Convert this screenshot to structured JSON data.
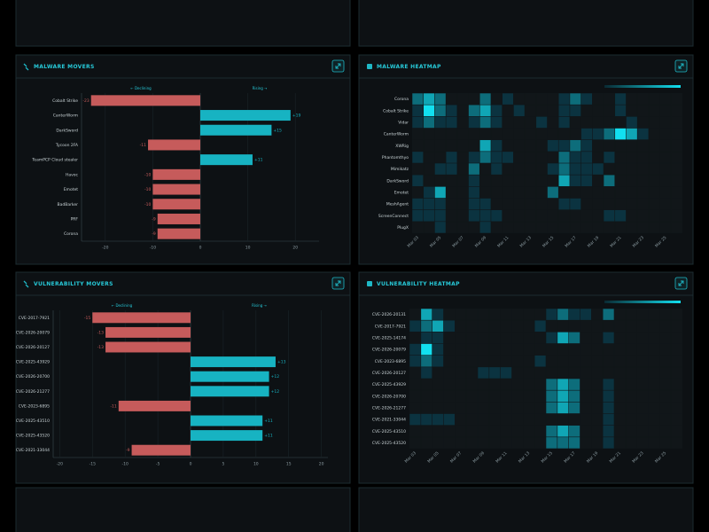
{
  "chart_data": [
    {
      "type": "diverging_bar",
      "title": "MALWARE MOVERS",
      "annotations": [
        "← Declining",
        "Rising →"
      ],
      "categories": [
        "Cobalt Strike",
        "CanterWorm",
        "DarkSword",
        "Tycoon 2FA",
        "TeamPCP Cloud stealer",
        "Havoc",
        "Emotet",
        "BadBarker",
        "PRF",
        "Corona"
      ],
      "values": [
        -23,
        19,
        15,
        -11,
        11,
        -10,
        -10,
        -10,
        -9,
        -9
      ],
      "value_labels": [
        "-23",
        "+19",
        "+15",
        "-11",
        "+11",
        "-10",
        "-10",
        "-10",
        "-9",
        "-9"
      ],
      "color_down": "#c65b5b",
      "color_up": "#17b3c2",
      "xlim": [
        -25,
        25
      ],
      "xticks": [
        -20,
        -10,
        0,
        10,
        20
      ],
      "grid": true
    },
    {
      "type": "heatmap",
      "title": "MALWARE HEATMAP",
      "rows": [
        "Corona",
        "Cobalt Strike",
        "Vidar",
        "CanterWorm",
        "XWRig",
        "Phantomthyo",
        "Mimikatz",
        "DarkSword",
        "Emotet",
        "MeshAgent",
        "ScreenConnect",
        "PlugX"
      ],
      "categories": [
        "Mar 03",
        null,
        "Mar 05",
        null,
        "Mar 07",
        null,
        "Mar 09",
        null,
        "Mar 11",
        null,
        "Mar 13",
        null,
        "Mar 15",
        null,
        "Mar 17",
        null,
        "Mar 19",
        null,
        "Mar 21",
        null,
        "Mar 23",
        null,
        "Mar 25",
        null
      ],
      "values": [
        [
          2,
          3,
          2,
          0,
          0,
          0,
          2,
          0,
          1,
          0,
          0,
          0,
          0,
          1,
          2,
          1,
          0,
          0,
          1,
          0,
          0,
          0,
          0,
          0
        ],
        [
          1,
          4,
          2,
          1,
          0,
          2,
          3,
          1,
          0,
          1,
          0,
          0,
          0,
          1,
          1,
          0,
          0,
          0,
          1,
          0,
          0,
          0,
          0,
          0
        ],
        [
          1,
          2,
          1,
          1,
          0,
          1,
          2,
          1,
          0,
          0,
          0,
          1,
          0,
          1,
          0,
          0,
          0,
          0,
          0,
          1,
          0,
          0,
          0,
          0
        ],
        [
          0,
          0,
          0,
          0,
          0,
          0,
          0,
          0,
          0,
          0,
          0,
          0,
          0,
          0,
          0,
          1,
          1,
          2,
          4,
          3,
          1,
          0,
          0,
          0
        ],
        [
          0,
          0,
          0,
          0,
          0,
          0,
          3,
          1,
          0,
          0,
          0,
          0,
          1,
          1,
          2,
          1,
          0,
          0,
          0,
          0,
          0,
          0,
          0,
          0
        ],
        [
          1,
          0,
          0,
          1,
          0,
          1,
          2,
          1,
          1,
          0,
          0,
          0,
          0,
          2,
          1,
          1,
          0,
          1,
          0,
          0,
          0,
          0,
          0,
          0
        ],
        [
          0,
          0,
          1,
          1,
          0,
          2,
          0,
          1,
          0,
          0,
          0,
          0,
          1,
          2,
          1,
          1,
          1,
          0,
          0,
          0,
          0,
          0,
          0,
          0
        ],
        [
          1,
          0,
          0,
          0,
          0,
          1,
          0,
          0,
          0,
          0,
          0,
          0,
          0,
          3,
          1,
          1,
          0,
          2,
          0,
          0,
          0,
          0,
          0,
          0
        ],
        [
          0,
          1,
          3,
          0,
          0,
          1,
          0,
          0,
          0,
          0,
          0,
          0,
          2,
          0,
          0,
          0,
          0,
          0,
          0,
          0,
          0,
          0,
          0,
          0
        ],
        [
          1,
          1,
          1,
          0,
          0,
          1,
          1,
          0,
          0,
          0,
          0,
          0,
          0,
          1,
          1,
          0,
          0,
          0,
          0,
          0,
          0,
          0,
          0,
          0
        ],
        [
          1,
          1,
          1,
          0,
          0,
          1,
          1,
          1,
          0,
          0,
          0,
          0,
          0,
          0,
          0,
          0,
          0,
          1,
          1,
          0,
          0,
          0,
          0,
          0
        ],
        [
          0,
          0,
          1,
          0,
          0,
          0,
          1,
          0,
          0,
          0,
          0,
          0,
          0,
          0,
          0,
          0,
          0,
          0,
          0,
          0,
          0,
          0,
          0,
          0
        ]
      ],
      "color": "#12e0f0"
    },
    {
      "type": "diverging_bar",
      "title": "VULNERABILITY MOVERS",
      "annotations": [
        "← Declining",
        "Rising →"
      ],
      "categories": [
        "CVE-2017-7921",
        "CVE-2026-20079",
        "CVE-2026-20127",
        "CVE-2025-43929",
        "CVE-2026-20700",
        "CVE-2026-21277",
        "CVE-2023-6895",
        "CVE-2025-43510",
        "CVE-2025-43520",
        "CVE-2021-33044"
      ],
      "values": [
        -15,
        -13,
        -13,
        13,
        12,
        12,
        -11,
        11,
        11,
        -9
      ],
      "value_labels": [
        "-15",
        "-13",
        "-13",
        "+13",
        "+12",
        "+12",
        "-11",
        "+11",
        "+11",
        "-9"
      ],
      "color_down": "#c65b5b",
      "color_up": "#17b3c2",
      "xlim": [
        -21,
        21
      ],
      "xticks": [
        -20,
        -15,
        -10,
        -5,
        0,
        5,
        10,
        15,
        20
      ],
      "grid": true
    },
    {
      "type": "heatmap",
      "title": "VULNERABILITY HEATMAP",
      "rows": [
        "CVE-2026-20131",
        "CVE-2017-7921",
        "CVE-2025-14174",
        "CVE-2026-20079",
        "CVE-2023-6895",
        "CVE-2026-20127",
        "CVE-2025-43929",
        "CVE-2026-20700",
        "CVE-2026-21277",
        "CVE-2021-33044",
        "CVE-2025-43510",
        "CVE-2025-43520"
      ],
      "categories": [
        "Mar 03",
        null,
        "Mar 05",
        null,
        "Mar 07",
        null,
        "Mar 09",
        null,
        "Mar 11",
        null,
        "Mar 13",
        null,
        "Mar 15",
        null,
        "Mar 17",
        null,
        "Mar 19",
        null,
        "Mar 21",
        null,
        "Mar 23",
        null,
        "Mar 25",
        null
      ],
      "values": [
        [
          0,
          3,
          1,
          0,
          0,
          0,
          0,
          0,
          0,
          0,
          0,
          0,
          1,
          2,
          1,
          1,
          0,
          2,
          0,
          0,
          0,
          0,
          0,
          0
        ],
        [
          1,
          2,
          3,
          1,
          0,
          0,
          0,
          0,
          0,
          0,
          0,
          1,
          0,
          0,
          0,
          0,
          0,
          0,
          0,
          0,
          0,
          0,
          0,
          0
        ],
        [
          0,
          1,
          1,
          0,
          0,
          0,
          0,
          0,
          0,
          0,
          0,
          0,
          1,
          3,
          2,
          0,
          0,
          1,
          0,
          0,
          0,
          0,
          0,
          0
        ],
        [
          1,
          4,
          1,
          0,
          0,
          0,
          0,
          0,
          0,
          0,
          0,
          0,
          0,
          0,
          0,
          0,
          0,
          0,
          0,
          0,
          0,
          0,
          0,
          0
        ],
        [
          1,
          2,
          1,
          0,
          0,
          0,
          0,
          0,
          0,
          0,
          0,
          1,
          0,
          0,
          0,
          0,
          0,
          0,
          0,
          0,
          0,
          0,
          0,
          0
        ],
        [
          0,
          1,
          0,
          0,
          0,
          0,
          1,
          1,
          1,
          0,
          0,
          0,
          0,
          0,
          0,
          0,
          0,
          0,
          0,
          0,
          0,
          0,
          0,
          0
        ],
        [
          0,
          0,
          0,
          0,
          0,
          0,
          0,
          0,
          0,
          0,
          0,
          0,
          2,
          3,
          2,
          0,
          0,
          1,
          0,
          0,
          0,
          0,
          0,
          0
        ],
        [
          0,
          0,
          0,
          0,
          0,
          0,
          0,
          0,
          0,
          0,
          0,
          0,
          2,
          3,
          2,
          0,
          0,
          1,
          0,
          0,
          0,
          0,
          0,
          0
        ],
        [
          0,
          0,
          0,
          0,
          0,
          0,
          0,
          0,
          0,
          0,
          0,
          0,
          2,
          3,
          2,
          0,
          0,
          1,
          0,
          0,
          0,
          0,
          0,
          0
        ],
        [
          1,
          1,
          1,
          1,
          0,
          0,
          0,
          0,
          0,
          0,
          0,
          0,
          0,
          0,
          0,
          0,
          0,
          1,
          0,
          0,
          0,
          0,
          0,
          0
        ],
        [
          0,
          0,
          0,
          0,
          0,
          0,
          0,
          0,
          0,
          0,
          0,
          0,
          2,
          3,
          2,
          0,
          0,
          1,
          0,
          0,
          0,
          0,
          0,
          0
        ],
        [
          0,
          0,
          0,
          0,
          0,
          0,
          0,
          0,
          0,
          0,
          0,
          0,
          2,
          2,
          2,
          0,
          0,
          1,
          0,
          0,
          0,
          0,
          0,
          0
        ]
      ],
      "color": "#12e0f0"
    }
  ]
}
